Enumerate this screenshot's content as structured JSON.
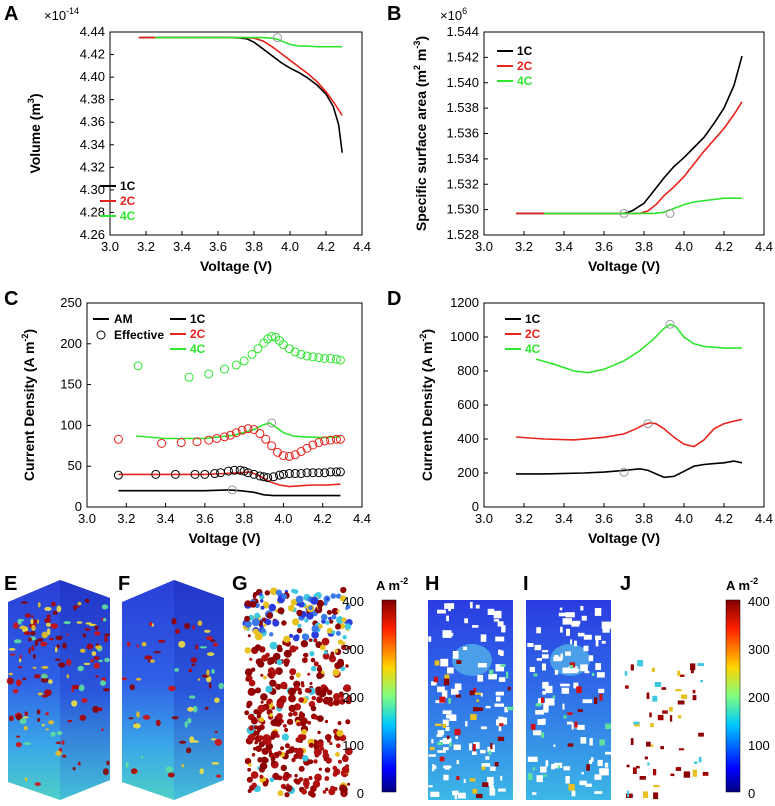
{
  "colors": {
    "1C": "#000000",
    "2C": "#e8231b",
    "4C": "#2ee62e"
  },
  "chart_data": [
    {
      "panel": "A",
      "type": "line",
      "xlabel": "Voltage (V)",
      "ylabel_main": "Volume (m",
      "ylabel_sup": "3",
      "ylabel_end": ")",
      "y_multiplier_base": "×10",
      "y_multiplier_exp": "-14",
      "xlim": [
        3.0,
        4.4
      ],
      "ylim": [
        4.26,
        4.44
      ],
      "xticks": [
        "3.0",
        "3.2",
        "3.4",
        "3.6",
        "3.8",
        "4.0",
        "4.2",
        "4.4"
      ],
      "yticks": [
        "4.26",
        "4.28",
        "4.30",
        "4.32",
        "4.34",
        "4.36",
        "4.38",
        "4.40",
        "4.42",
        "4.44"
      ],
      "legend": [
        "1C",
        "2C",
        "4C"
      ],
      "series": [
        {
          "name": "1C",
          "x": [
            3.16,
            3.3,
            3.5,
            3.65,
            3.72,
            3.76,
            3.8,
            3.85,
            3.9,
            3.95,
            4.0,
            4.05,
            4.1,
            4.15,
            4.2,
            4.24,
            4.27,
            4.29
          ],
          "y": [
            4.435,
            4.435,
            4.435,
            4.435,
            4.4348,
            4.434,
            4.431,
            4.425,
            4.419,
            4.413,
            4.408,
            4.404,
            4.399,
            4.393,
            4.385,
            4.374,
            4.358,
            4.333
          ]
        },
        {
          "name": "2C",
          "x": [
            3.16,
            3.4,
            3.6,
            3.75,
            3.8,
            3.85,
            3.9,
            3.95,
            4.0,
            4.05,
            4.1,
            4.15,
            4.2,
            4.25,
            4.29
          ],
          "y": [
            4.435,
            4.435,
            4.435,
            4.435,
            4.4345,
            4.432,
            4.427,
            4.421,
            4.415,
            4.409,
            4.403,
            4.396,
            4.387,
            4.376,
            4.366
          ]
        },
        {
          "name": "4C",
          "x": [
            3.25,
            3.5,
            3.7,
            3.85,
            3.9,
            3.93,
            3.97,
            4.0,
            4.05,
            4.1,
            4.15,
            4.2,
            4.25,
            4.29
          ],
          "y": [
            4.435,
            4.435,
            4.435,
            4.435,
            4.4345,
            4.4335,
            4.431,
            4.429,
            4.4275,
            4.4275,
            4.427,
            4.427,
            4.427,
            4.427
          ]
        }
      ]
    },
    {
      "panel": "B",
      "type": "line",
      "xlabel": "Voltage (V)",
      "ylabel_main": "Specific surface area (m",
      "ylabel_sup1": "2",
      "ylabel_mid": " m",
      "ylabel_sup2": "-3",
      "ylabel_end": ")",
      "y_multiplier_base": "×10",
      "y_multiplier_exp": "6",
      "xlim": [
        3.0,
        4.4
      ],
      "ylim": [
        1.528,
        1.544
      ],
      "xticks": [
        "3.0",
        "3.2",
        "3.4",
        "3.6",
        "3.8",
        "4.0",
        "4.2",
        "4.4"
      ],
      "yticks": [
        "1.528",
        "1.530",
        "1.532",
        "1.534",
        "1.536",
        "1.538",
        "1.540",
        "1.542",
        "1.544"
      ],
      "legend": [
        "1C",
        "2C",
        "4C"
      ],
      "series": [
        {
          "name": "1C",
          "x": [
            3.16,
            3.5,
            3.7,
            3.74,
            3.8,
            3.85,
            3.9,
            3.95,
            4.0,
            4.05,
            4.1,
            4.15,
            4.2,
            4.25,
            4.29
          ],
          "y": [
            1.5297,
            1.5297,
            1.5297,
            1.5299,
            1.5305,
            1.5315,
            1.5325,
            1.5334,
            1.5341,
            1.5349,
            1.5357,
            1.5368,
            1.538,
            1.5398,
            1.5421
          ]
        },
        {
          "name": "2C",
          "x": [
            3.16,
            3.5,
            3.78,
            3.82,
            3.86,
            3.9,
            3.95,
            4.0,
            4.05,
            4.1,
            4.15,
            4.2,
            4.25,
            4.29
          ],
          "y": [
            1.5297,
            1.5297,
            1.5297,
            1.5299,
            1.5304,
            1.5311,
            1.5318,
            1.5326,
            1.5336,
            1.5346,
            1.5355,
            1.5364,
            1.5375,
            1.5385
          ]
        },
        {
          "name": "4C",
          "x": [
            3.3,
            3.6,
            3.85,
            3.9,
            3.95,
            4.0,
            4.05,
            4.1,
            4.15,
            4.2,
            4.25,
            4.29
          ],
          "y": [
            1.5297,
            1.5297,
            1.5297,
            1.5298,
            1.5301,
            1.5304,
            1.5306,
            1.5307,
            1.5308,
            1.5309,
            1.5309,
            1.5309
          ]
        }
      ]
    },
    {
      "panel": "C",
      "type": "line+scatter",
      "xlabel": "Voltage (V)",
      "ylabel_main": "Current Density (A m",
      "ylabel_sup": "-2",
      "ylabel_end": ")",
      "xlim": [
        3.0,
        4.4
      ],
      "ylim": [
        0,
        250
      ],
      "xticks": [
        "3.0",
        "3.2",
        "3.4",
        "3.6",
        "3.8",
        "4.0",
        "4.2",
        "4.4"
      ],
      "yticks": [
        "0",
        "50",
        "100",
        "150",
        "200",
        "250"
      ],
      "legend_style": [
        "AM",
        "Effective"
      ],
      "legend": [
        "1C",
        "2C",
        "4C"
      ],
      "lines": [
        {
          "name": "1C",
          "x": [
            3.16,
            3.4,
            3.6,
            3.72,
            3.78,
            3.85,
            3.9,
            3.95,
            4.0,
            4.1,
            4.2,
            4.29
          ],
          "y": [
            20,
            20,
            20,
            21,
            20,
            18,
            15,
            14,
            14,
            14,
            14,
            14
          ]
        },
        {
          "name": "2C",
          "x": [
            3.16,
            3.4,
            3.6,
            3.7,
            3.78,
            3.83,
            3.88,
            3.93,
            3.98,
            4.03,
            4.08,
            4.15,
            4.22,
            4.29
          ],
          "y": [
            40,
            40,
            40,
            41,
            42,
            43,
            38,
            31,
            27,
            25,
            26,
            27,
            27,
            28
          ]
        },
        {
          "name": "4C",
          "x": [
            3.25,
            3.4,
            3.6,
            3.75,
            3.85,
            3.9,
            3.93,
            3.96,
            4.0,
            4.05,
            4.1,
            4.2,
            4.29
          ],
          "y": [
            87,
            84,
            84,
            88,
            95,
            101,
            103,
            98,
            91,
            87,
            86,
            85,
            86
          ]
        }
      ],
      "scatter": [
        {
          "name": "1C",
          "x": [
            3.16,
            3.35,
            3.45,
            3.55,
            3.6,
            3.65,
            3.68,
            3.72,
            3.75,
            3.78,
            3.8,
            3.82,
            3.85,
            3.88,
            3.9,
            3.92,
            3.95,
            3.98,
            4.0,
            4.03,
            4.06,
            4.09,
            4.12,
            4.15,
            4.18,
            4.21,
            4.24,
            4.27,
            4.29
          ],
          "y": [
            39,
            40,
            40,
            40,
            40,
            41,
            42,
            44,
            45,
            45,
            44,
            42,
            40,
            38,
            37,
            36,
            37,
            39,
            40,
            41,
            41,
            41,
            42,
            42,
            42,
            42,
            43,
            43,
            43
          ]
        },
        {
          "name": "2C",
          "x": [
            3.16,
            3.38,
            3.48,
            3.56,
            3.62,
            3.66,
            3.7,
            3.73,
            3.76,
            3.79,
            3.82,
            3.85,
            3.88,
            3.91,
            3.94,
            3.97,
            4.0,
            4.03,
            4.06,
            4.09,
            4.12,
            4.15,
            4.18,
            4.21,
            4.24,
            4.27,
            4.29
          ],
          "y": [
            83,
            78,
            79,
            80,
            82,
            84,
            86,
            88,
            91,
            94,
            96,
            95,
            90,
            83,
            75,
            67,
            63,
            62,
            64,
            68,
            72,
            76,
            79,
            81,
            82,
            83,
            83
          ]
        },
        {
          "name": "4C",
          "x": [
            3.26,
            3.52,
            3.62,
            3.7,
            3.76,
            3.8,
            3.84,
            3.87,
            3.9,
            3.92,
            3.94,
            3.96,
            3.98,
            4.0,
            4.03,
            4.06,
            4.09,
            4.12,
            4.15,
            4.18,
            4.21,
            4.24,
            4.27,
            4.29
          ],
          "y": [
            173,
            159,
            163,
            169,
            174,
            179,
            187,
            194,
            201,
            206,
            209,
            208,
            204,
            199,
            194,
            190,
            187,
            185,
            184,
            183,
            182,
            182,
            181,
            180
          ]
        }
      ],
      "marker_hollow": [
        {
          "x": 3.74,
          "y": 21
        },
        {
          "x": 3.94,
          "y": 103
        }
      ]
    },
    {
      "panel": "D",
      "type": "line",
      "xlabel": "Voltage (V)",
      "ylabel_main": "Current Density (A m",
      "ylabel_sup": "-2",
      "ylabel_end": ")",
      "xlim": [
        3.0,
        4.4
      ],
      "ylim": [
        0,
        1200
      ],
      "xticks": [
        "3.0",
        "3.2",
        "3.4",
        "3.6",
        "3.8",
        "4.0",
        "4.2",
        "4.4"
      ],
      "yticks": [
        "0",
        "200",
        "400",
        "600",
        "800",
        "1000",
        "1200"
      ],
      "legend": [
        "1C",
        "2C",
        "4C"
      ],
      "series": [
        {
          "name": "1C",
          "x": [
            3.16,
            3.3,
            3.5,
            3.6,
            3.7,
            3.78,
            3.82,
            3.86,
            3.9,
            3.95,
            4.0,
            4.05,
            4.1,
            4.15,
            4.2,
            4.25,
            4.29
          ],
          "y": [
            195,
            195,
            200,
            205,
            215,
            225,
            215,
            195,
            175,
            180,
            210,
            240,
            250,
            255,
            260,
            270,
            260
          ]
        },
        {
          "name": "2C",
          "x": [
            3.16,
            3.3,
            3.45,
            3.6,
            3.7,
            3.76,
            3.8,
            3.83,
            3.86,
            3.9,
            3.95,
            4.0,
            4.05,
            4.1,
            4.15,
            4.2,
            4.25,
            4.29
          ],
          "y": [
            412,
            400,
            395,
            410,
            430,
            460,
            485,
            495,
            490,
            460,
            410,
            370,
            355,
            395,
            460,
            490,
            505,
            515
          ]
        },
        {
          "name": "4C",
          "x": [
            3.26,
            3.35,
            3.45,
            3.52,
            3.6,
            3.7,
            3.78,
            3.85,
            3.9,
            3.93,
            3.96,
            4.0,
            4.05,
            4.1,
            4.2,
            4.29
          ],
          "y": [
            870,
            840,
            800,
            790,
            810,
            860,
            920,
            990,
            1050,
            1075,
            1060,
            1000,
            960,
            945,
            935,
            935
          ]
        }
      ],
      "marker_hollow": [
        {
          "x": 3.7,
          "y": 205
        },
        {
          "x": 3.82,
          "y": 490
        },
        {
          "x": 3.93,
          "y": 1075
        }
      ]
    }
  ],
  "bottom_panels": {
    "labels": [
      "E",
      "F",
      "G",
      "H",
      "I",
      "J"
    ],
    "colorbar_left": {
      "unit_main": "A m",
      "unit_sup": "-2",
      "ticks": [
        "0",
        "100",
        "200",
        "300",
        "400"
      ]
    },
    "colorbar_right": {
      "unit_main": "A m",
      "unit_sup": "-2",
      "ticks": [
        "0",
        "100",
        "200",
        "300",
        "400"
      ]
    }
  }
}
